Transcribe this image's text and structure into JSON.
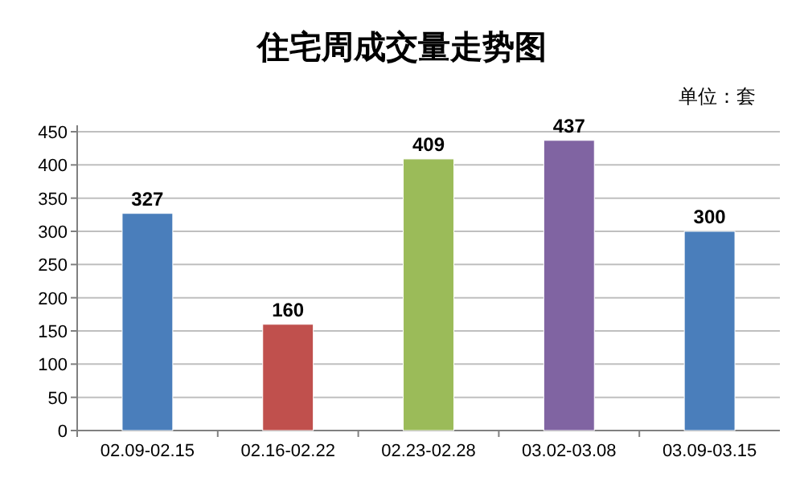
{
  "chart_data": {
    "type": "bar",
    "title": "住宅周成交量走势图",
    "annotations": [
      "单位：套"
    ],
    "categories": [
      "02.09-02.15",
      "02.16-02.22",
      "02.23-02.28",
      "03.02-03.08",
      "03.09-03.15"
    ],
    "values": [
      327,
      160,
      409,
      437,
      300
    ],
    "colors": [
      "#4a7ebb",
      "#c0504d",
      "#9bbb59",
      "#8064a2",
      "#4a7ebb"
    ],
    "ylim": [
      0,
      450
    ],
    "yticks": [
      0,
      50,
      100,
      150,
      200,
      250,
      300,
      350,
      400,
      450
    ],
    "grid": "y",
    "data_labels": true
  }
}
